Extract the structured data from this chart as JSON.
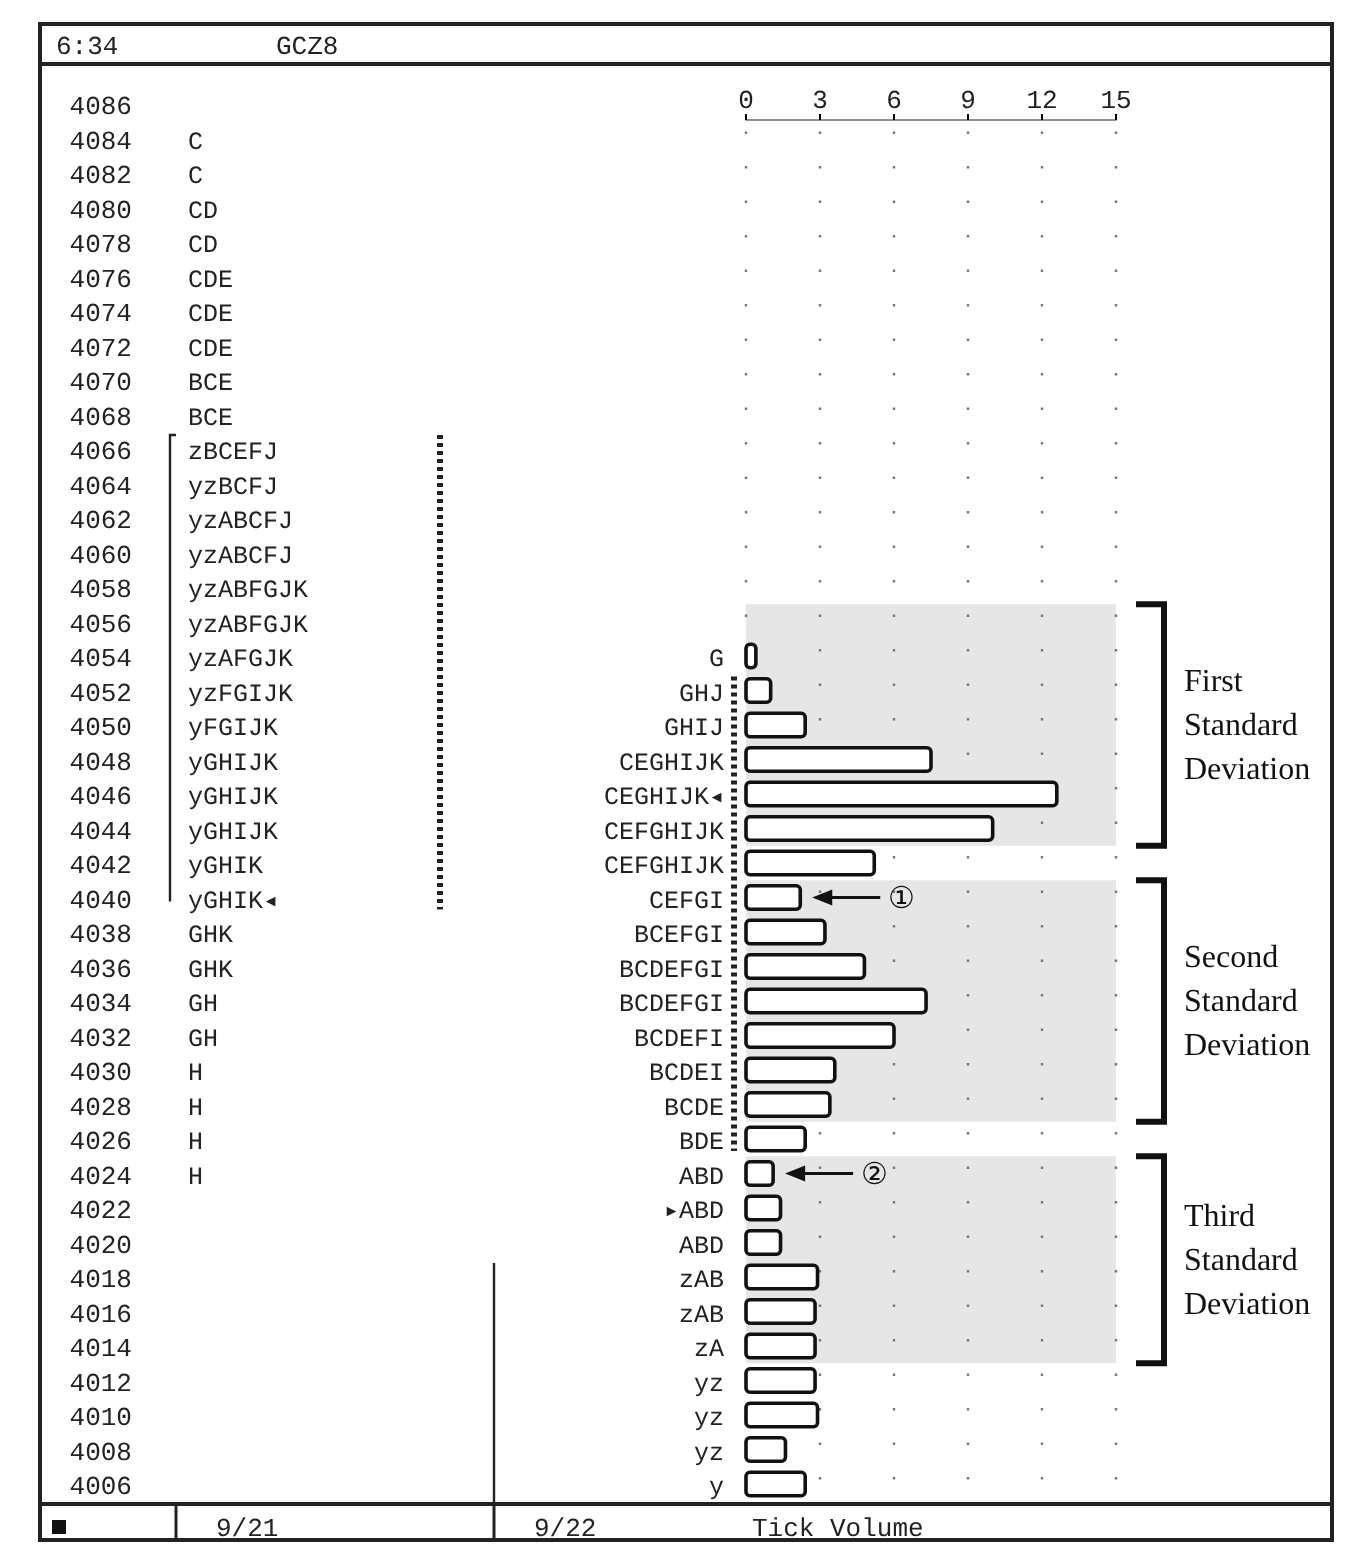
{
  "chart_data": {
    "type": "bar",
    "orientation": "horizontal",
    "title": "GCZ8",
    "xlabel": "Tick Volume",
    "categories": [
      "4086",
      "4084",
      "4082",
      "4080",
      "4078",
      "4076",
      "4074",
      "4072",
      "4070",
      "4068",
      "4066",
      "4064",
      "4062",
      "4060",
      "4058",
      "4056",
      "4054",
      "4052",
      "4050",
      "4048",
      "4046",
      "4044",
      "4042",
      "4040",
      "4038",
      "4036",
      "4034",
      "4032",
      "4030",
      "4028",
      "4026",
      "4024",
      "4022",
      "4020",
      "4018",
      "4016",
      "4014",
      "4012",
      "4010",
      "4008",
      "4006"
    ],
    "series": [
      {
        "axis": "x2",
        "color": "#ffffff",
        "values": [
          null,
          null,
          null,
          null,
          null,
          null,
          null,
          null,
          null,
          null,
          null,
          null,
          null,
          null,
          null,
          null,
          0.4,
          1,
          2.4,
          7.5,
          12.6,
          10,
          5.2,
          2.2,
          3.2,
          4.8,
          7.3,
          6,
          3.6,
          3.4,
          2.4,
          1.1,
          1.4,
          1.4,
          2.9,
          2.8,
          2.8,
          2.8,
          2.9,
          1.6,
          2.4
        ],
        "value_labels": [
          null,
          null,
          null,
          null,
          null,
          null,
          null,
          null,
          null,
          null,
          null,
          null,
          null,
          null,
          null,
          null,
          "G",
          "GHJ",
          "GHIJ",
          "CEGHIJK",
          "CEGHIJK◂",
          "CEFGHIJK",
          "CEFGHIJK",
          "CEFGI",
          "BCEFGI",
          "BCDEFGI",
          "BCDEFGI",
          "BCDEFI",
          "BCDEI",
          "BCDE",
          "BDE",
          "ABD",
          "▸ABD",
          "ABD",
          "zAB",
          "zAB",
          "zA",
          "yz",
          "yz",
          "yz",
          "y"
        ]
      }
    ],
    "x2lim": [
      0,
      15
    ],
    "x2ticks": [
      0,
      3,
      6,
      9,
      12,
      15
    ],
    "grid": "x",
    "bands": [
      {
        "axis": "y",
        "from": "4056",
        "to": "4044",
        "label": "First Standard Deviation",
        "color": "#e6e6e6"
      },
      {
        "axis": "y",
        "from": "4040",
        "to": "4028",
        "label": "Second Standard Deviation",
        "color": "#e6e6e6"
      },
      {
        "axis": "y",
        "from": "4024",
        "to": "4014",
        "label": "Third Standard Deviation",
        "color": "#e6e6e6"
      }
    ],
    "annotations": [
      "6:34",
      "9/21",
      "9/22",
      {
        "text": "①",
        "x": 2.2,
        "y": "4040"
      },
      {
        "text": "②",
        "x": 1.1,
        "y": "4024"
      },
      "C",
      "C",
      "CD",
      "CD",
      "CDE",
      "CDE",
      "CDE",
      "BCE",
      "BCE",
      "zBCEFJ",
      "yzBCFJ",
      "yzABCFJ",
      "yzABCFJ",
      "yzABFGJK",
      "yzABFGJK",
      "yzAFGJK",
      "yzFGIJK",
      "yFGIJK",
      "yGHIJK",
      "yGHIJK",
      "yGHIJK",
      "yGHIK",
      "yGHIK◂",
      "GHK",
      "GHK",
      "GH",
      "GH",
      "H",
      "H",
      "H",
      "H"
    ]
  }
}
